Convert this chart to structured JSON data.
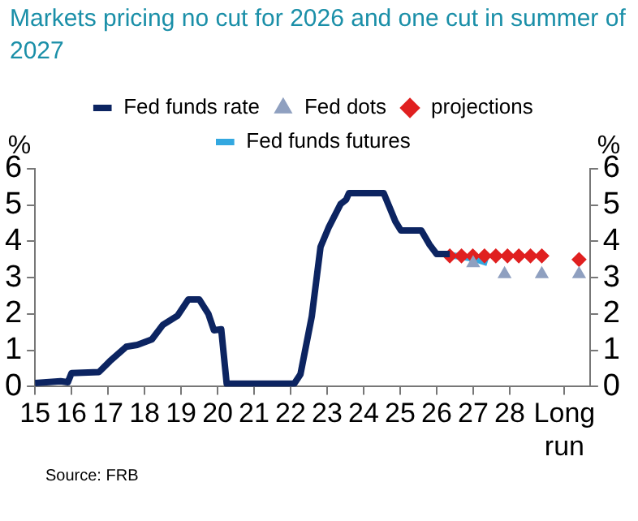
{
  "chart_data": {
    "type": "line",
    "title": "Markets pricing no cut for 2026 and one cut in summer of 2027",
    "ylabel": "%",
    "y2label": "%",
    "annotations": [
      "Source: FRB"
    ],
    "xlim": [
      15,
      30.2
    ],
    "xticks": [
      15,
      16,
      17,
      18,
      19,
      20,
      21,
      22,
      23,
      24,
      25,
      26,
      27,
      28,
      {
        "value": 29.5,
        "label": "Long run"
      }
    ],
    "ylim": [
      0,
      6
    ],
    "yticks": [
      0,
      1,
      2,
      3,
      4,
      5,
      6
    ],
    "y2lim": [
      0,
      6
    ],
    "y2ticks": [
      0,
      1,
      2,
      3,
      4,
      5,
      6
    ],
    "grid": false,
    "legend": "top",
    "series": [
      {
        "name": "Fed funds rate",
        "color": "#0c2461",
        "marker": "none",
        "x": [
          15.0,
          15.7,
          15.9,
          16.0,
          16.75,
          17.05,
          17.5,
          17.8,
          18.2,
          18.5,
          18.9,
          19.2,
          19.5,
          19.75,
          19.9,
          20.1,
          20.25,
          20.85,
          21.5,
          22.1,
          22.27,
          22.58,
          22.82,
          23.05,
          23.37,
          23.52,
          23.6,
          24.55,
          24.87,
          25.02,
          25.58,
          25.8,
          26.0,
          26.36
        ],
        "values": [
          0.1,
          0.15,
          0.12,
          0.37,
          0.4,
          0.7,
          1.1,
          1.15,
          1.3,
          1.7,
          1.95,
          2.4,
          2.4,
          2.0,
          1.55,
          1.58,
          0.08,
          0.08,
          0.08,
          0.08,
          0.34,
          1.93,
          3.85,
          4.4,
          5.03,
          5.15,
          5.33,
          5.33,
          4.55,
          4.3,
          4.3,
          3.92,
          3.65,
          3.65
        ]
      },
      {
        "name": "Fed dots",
        "type": "scatter",
        "color": "#8fa0c0",
        "marker": "triangle",
        "x": [
          27.0,
          27.86,
          28.88,
          29.9
        ],
        "values": [
          3.4,
          3.1,
          3.1,
          3.1
        ]
      },
      {
        "name": "projections",
        "type": "scatter",
        "color": "#e02020",
        "marker": "diamond",
        "x": [
          26.36,
          26.68,
          26.99,
          27.31,
          27.62,
          27.94,
          28.25,
          28.57,
          28.88,
          29.9
        ],
        "values": [
          3.6,
          3.6,
          3.6,
          3.6,
          3.6,
          3.6,
          3.6,
          3.6,
          3.6,
          3.5
        ]
      },
      {
        "name": "Fed funds futures",
        "color": "#33a8e0",
        "marker": "none",
        "x": [
          26.36,
          26.68,
          27.0,
          27.39
        ],
        "values": [
          3.62,
          3.58,
          3.53,
          3.41
        ]
      }
    ]
  }
}
